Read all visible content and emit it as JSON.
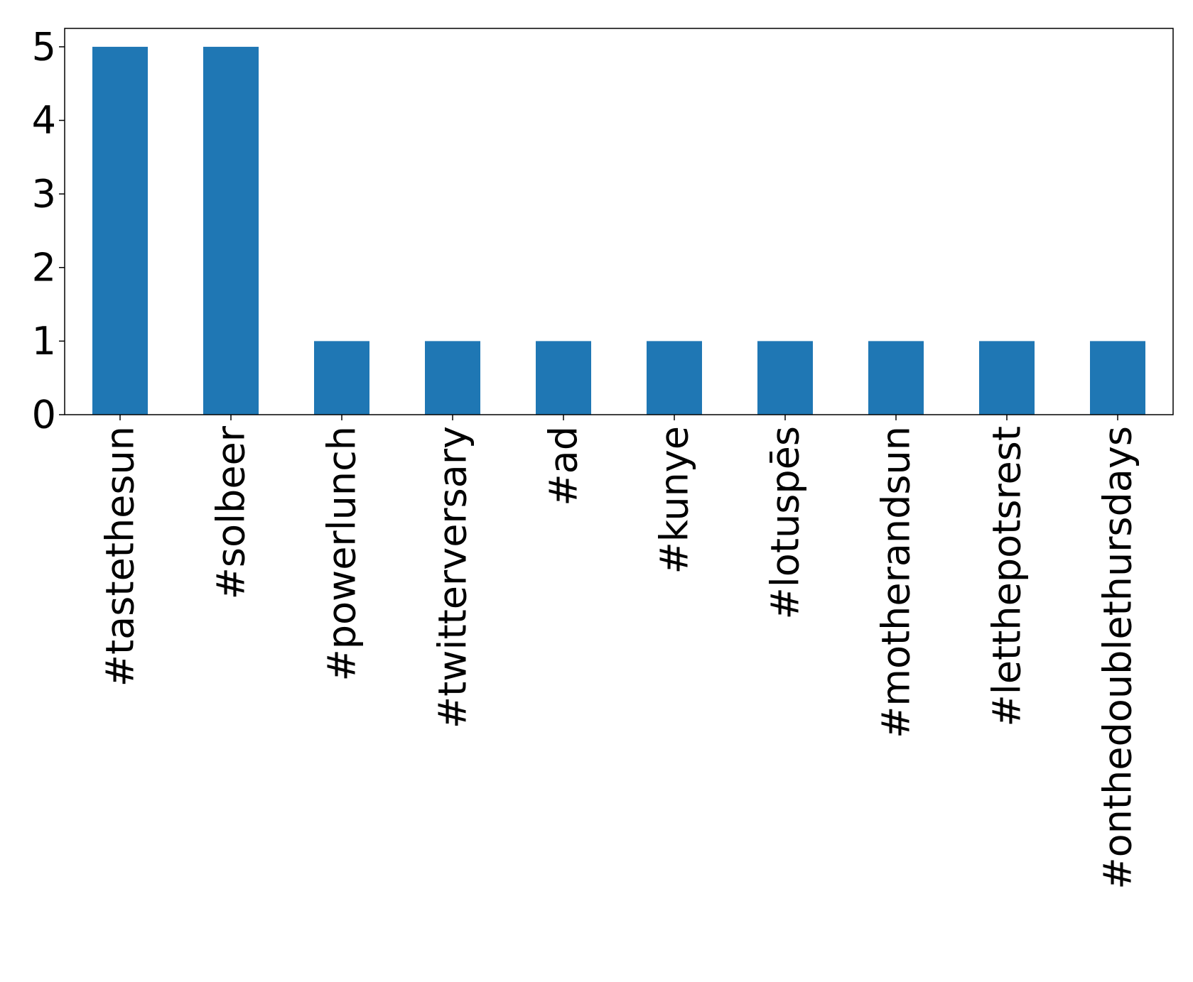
{
  "chart_data": {
    "type": "bar",
    "title": "",
    "xlabel": "",
    "ylabel": "",
    "categories": [
      "#tastethesun",
      "#solbeer",
      "#powerlunch",
      "#twitterversary",
      "#ad",
      "#kunye",
      "#lotuspēs",
      "#motherandsun",
      "#letthepotsrest",
      "#onthedoublethursdays"
    ],
    "values": [
      5,
      5,
      1,
      1,
      1,
      1,
      1,
      1,
      1,
      1
    ],
    "yticks": [
      "0",
      "1",
      "2",
      "3",
      "4",
      "5"
    ],
    "ylim": [
      0,
      5.25
    ],
    "bar_color": "#1f77b4",
    "grid": false,
    "legend": "none"
  }
}
